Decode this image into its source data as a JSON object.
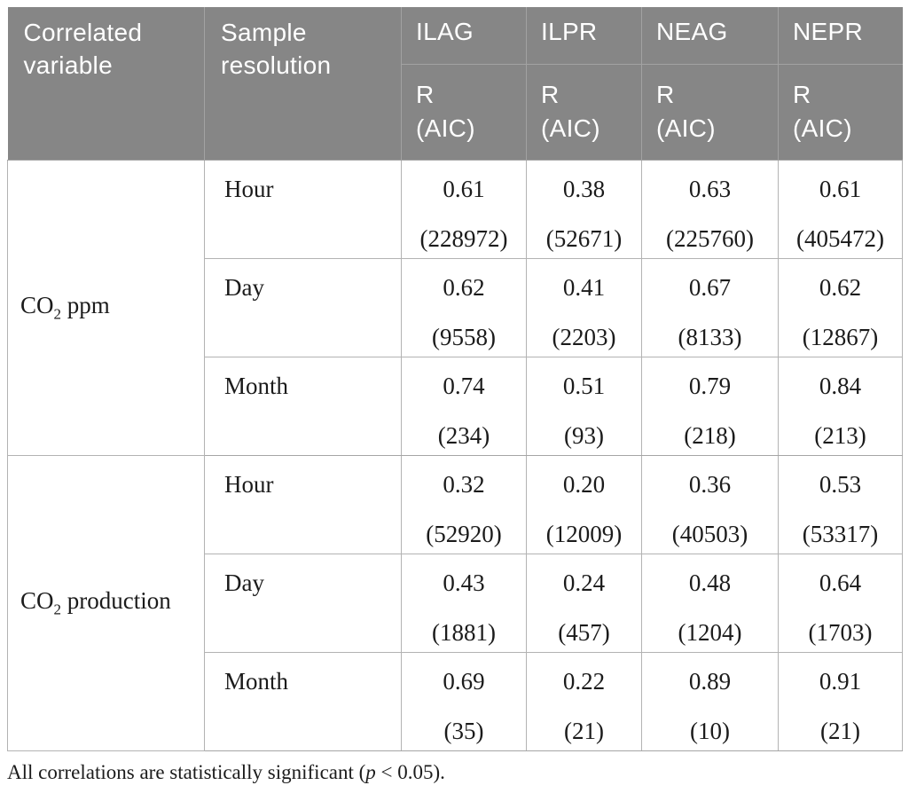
{
  "colors": {
    "header_bg": "#868686",
    "header_text": "#ffffff",
    "header_line": "#a2a2a2",
    "body_line": "#b3b3b3",
    "group_line": "#a5a5a5",
    "body_text": "#1b1b1b",
    "page_bg": "#ffffff"
  },
  "table": {
    "header": {
      "correlated_variable": "Correlated variable",
      "sample_resolution": "Sample resolution",
      "index_columns": [
        "ILAG",
        "ILPR",
        "NEAG",
        "NEPR"
      ],
      "metric_line1": "R",
      "metric_line2": "(AIC)"
    },
    "groups": [
      {
        "variable": {
          "pre": "CO",
          "sub": "2",
          "post": " ppm"
        },
        "rows": [
          {
            "resolution": "Hour",
            "cells": [
              {
                "r": "0.61",
                "aic": "(228972)"
              },
              {
                "r": "0.38",
                "aic": "(52671)"
              },
              {
                "r": "0.63",
                "aic": "(225760)"
              },
              {
                "r": "0.61",
                "aic": "(405472)"
              }
            ]
          },
          {
            "resolution": "Day",
            "cells": [
              {
                "r": "0.62",
                "aic": "(9558)"
              },
              {
                "r": "0.41",
                "aic": "(2203)"
              },
              {
                "r": "0.67",
                "aic": "(8133)"
              },
              {
                "r": "0.62",
                "aic": "(12867)"
              }
            ]
          },
          {
            "resolution": "Month",
            "cells": [
              {
                "r": "0.74",
                "aic": "(234)"
              },
              {
                "r": "0.51",
                "aic": "(93)"
              },
              {
                "r": "0.79",
                "aic": "(218)"
              },
              {
                "r": "0.84",
                "aic": "(213)"
              }
            ]
          }
        ]
      },
      {
        "variable": {
          "pre": "CO",
          "sub": "2",
          "post": " production"
        },
        "rows": [
          {
            "resolution": "Hour",
            "cells": [
              {
                "r": "0.32",
                "aic": "(52920)"
              },
              {
                "r": "0.20",
                "aic": "(12009)"
              },
              {
                "r": "0.36",
                "aic": "(40503)"
              },
              {
                "r": "0.53",
                "aic": "(53317)"
              }
            ]
          },
          {
            "resolution": "Day",
            "cells": [
              {
                "r": "0.43",
                "aic": "(1881)"
              },
              {
                "r": "0.24",
                "aic": "(457)"
              },
              {
                "r": "0.48",
                "aic": "(1204)"
              },
              {
                "r": "0.64",
                "aic": "(1703)"
              }
            ]
          },
          {
            "resolution": "Month",
            "cells": [
              {
                "r": "0.69",
                "aic": "(35)"
              },
              {
                "r": "0.22",
                "aic": "(21)"
              },
              {
                "r": "0.89",
                "aic": "(10)"
              },
              {
                "r": "0.91",
                "aic": "(21)"
              }
            ]
          }
        ]
      }
    ]
  },
  "footnote": {
    "pre": "All correlations are statistically significant (",
    "italic": "p",
    "post": " < 0.05)."
  }
}
